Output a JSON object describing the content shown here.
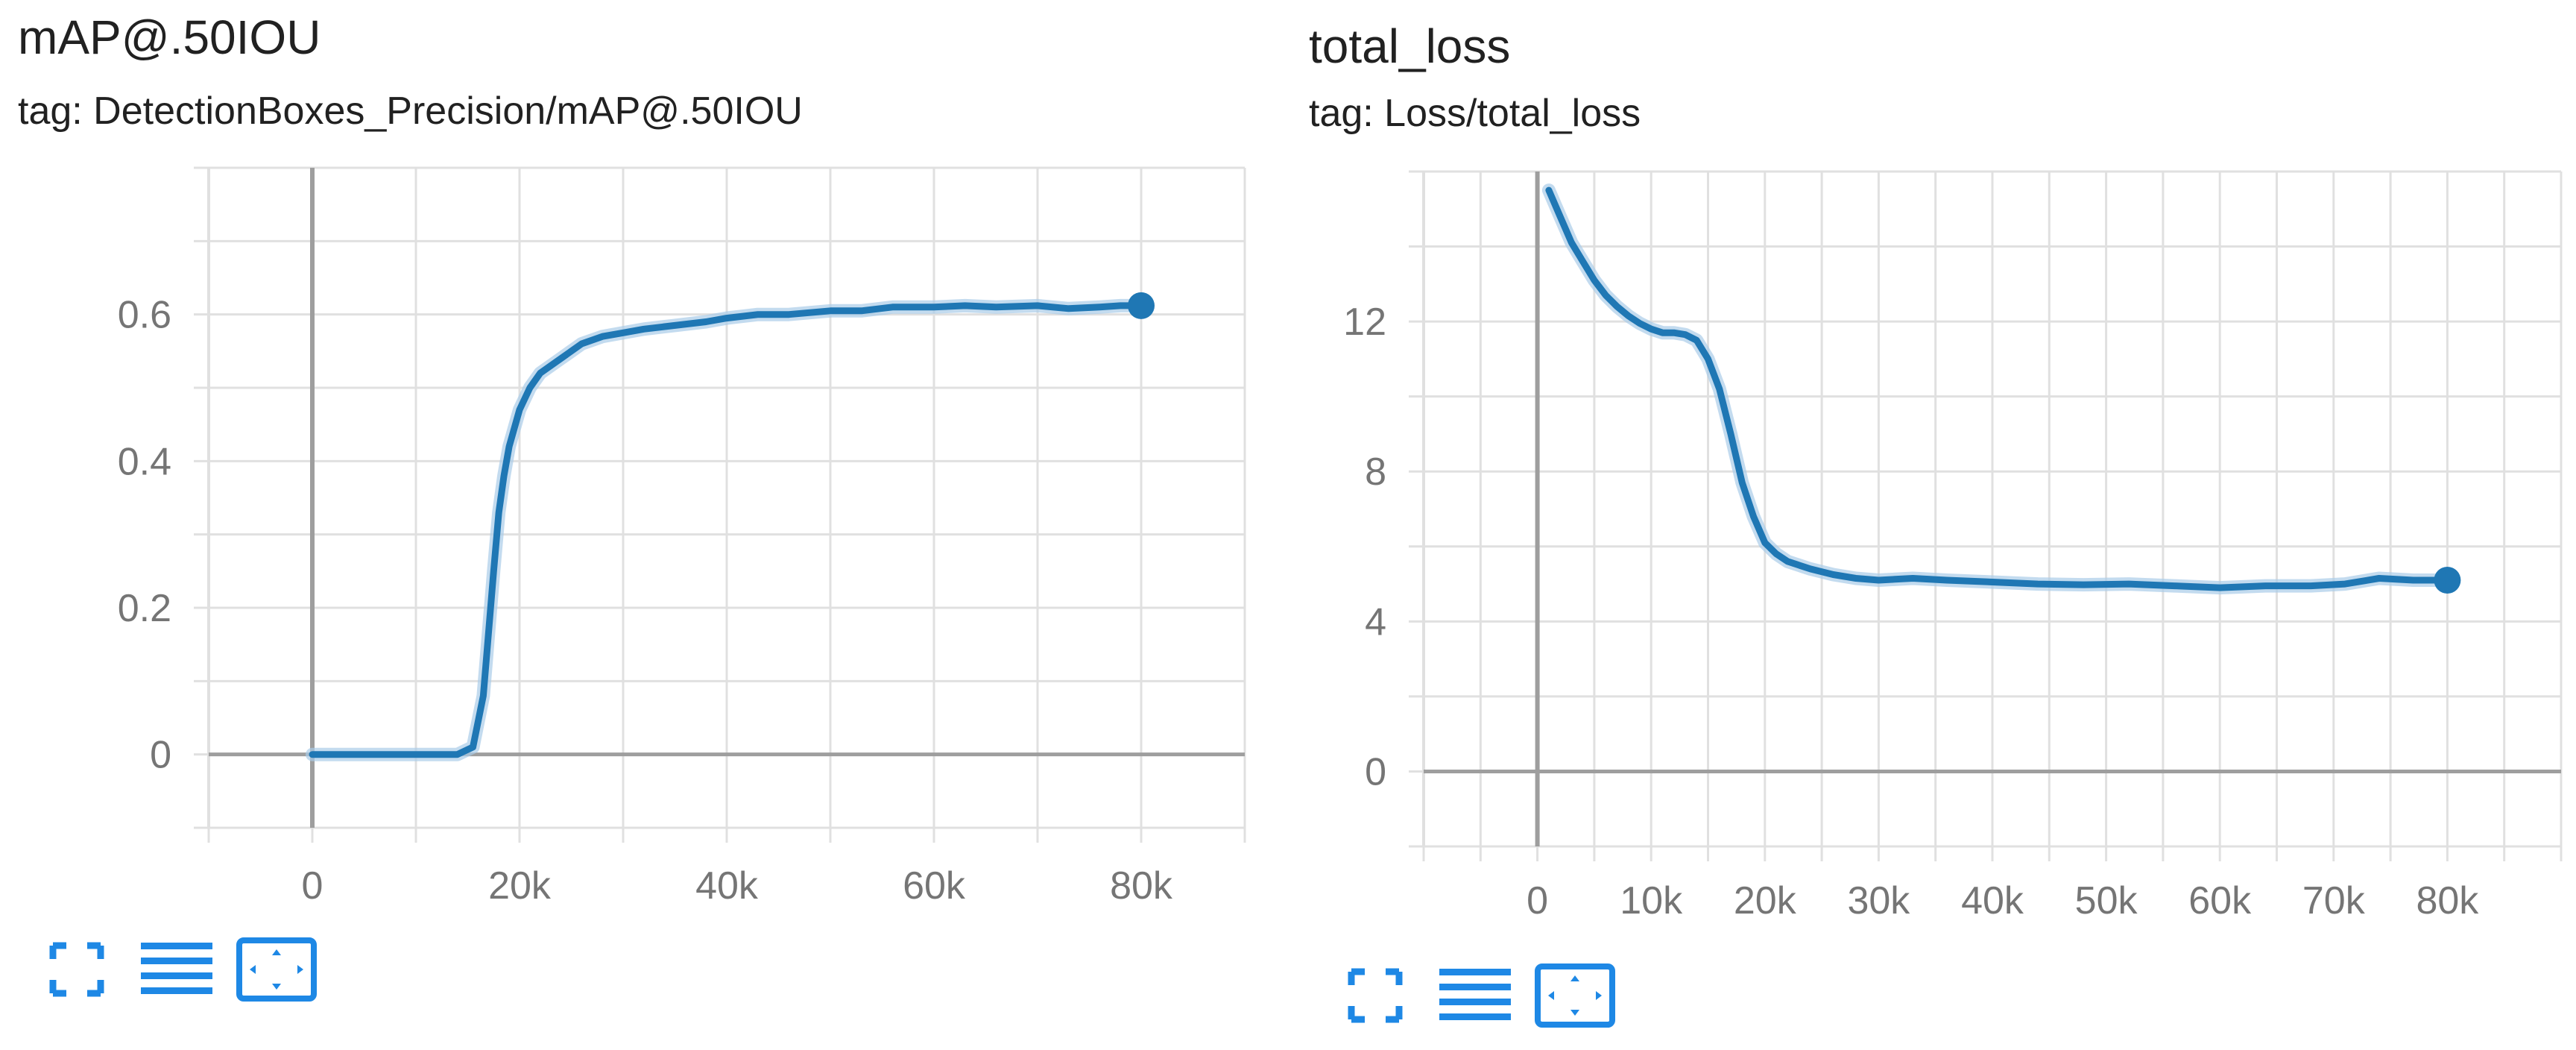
{
  "charts": [
    {
      "title": "mAP@.50IOU",
      "tag": "tag: DetectionBoxes_Precision/mAP@.50IOU"
    },
    {
      "title": "total_loss",
      "tag": "tag: Loss/total_loss"
    }
  ],
  "toolbar_icons": [
    "expand-fullscreen-icon",
    "toggle-log-scale-icon",
    "fit-domain-icon"
  ],
  "colors": {
    "line": "#1f77b4",
    "line_raw": "#a9cce8",
    "grid": "#e0e0e0",
    "axis": "#9e9e9e",
    "icon": "#1e88e5"
  },
  "chart_data": [
    {
      "type": "line",
      "title": "mAP@.50IOU",
      "subtitle": "tag: DetectionBoxes_Precision/mAP@.50IOU",
      "xlabel": "",
      "ylabel": "",
      "xlim": [
        -10000,
        90000
      ],
      "ylim": [
        -0.1,
        0.8
      ],
      "xticks": [
        0,
        20000,
        40000,
        60000,
        80000
      ],
      "xtick_labels": [
        "0",
        "20k",
        "40k",
        "60k",
        "80k"
      ],
      "yticks": [
        0,
        0.2,
        0.4,
        0.6
      ],
      "ytick_labels": [
        "0",
        "0.2",
        "0.4",
        "0.6"
      ],
      "grid": true,
      "series": [
        {
          "x": [
            0,
            5000,
            10000,
            14000,
            15500,
            16500,
            17500,
            18000,
            18500,
            19000,
            20000,
            21000,
            22000,
            24000,
            26000,
            28000,
            30000,
            32000,
            35000,
            38000,
            40000,
            43000,
            46000,
            50000,
            53000,
            56000,
            60000,
            63000,
            66000,
            70000,
            73000,
            76000,
            78000,
            80000
          ],
          "y": [
            0,
            0,
            0,
            0,
            0.01,
            0.08,
            0.25,
            0.33,
            0.38,
            0.42,
            0.47,
            0.5,
            0.52,
            0.54,
            0.56,
            0.57,
            0.575,
            0.58,
            0.585,
            0.59,
            0.595,
            0.6,
            0.6,
            0.605,
            0.605,
            0.61,
            0.61,
            0.612,
            0.61,
            0.612,
            0.608,
            0.61,
            0.612,
            0.612
          ]
        }
      ]
    },
    {
      "type": "line",
      "title": "total_loss",
      "subtitle": "tag: Loss/total_loss",
      "xlabel": "",
      "ylabel": "",
      "xlim": [
        -10000,
        90000
      ],
      "ylim": [
        -2,
        16
      ],
      "xticks": [
        0,
        10000,
        20000,
        30000,
        40000,
        50000,
        60000,
        70000,
        80000
      ],
      "xtick_labels": [
        "0",
        "10k",
        "20k",
        "30k",
        "40k",
        "50k",
        "60k",
        "70k",
        "80k"
      ],
      "yticks": [
        0,
        4,
        8,
        12
      ],
      "ytick_labels": [
        "0",
        "4",
        "8",
        "12"
      ],
      "grid": true,
      "series": [
        {
          "x": [
            1000,
            2000,
            3000,
            4000,
            5000,
            6000,
            7000,
            8000,
            9000,
            10000,
            11000,
            12000,
            13000,
            14000,
            15000,
            16000,
            17000,
            18000,
            19000,
            20000,
            21000,
            22000,
            24000,
            26000,
            28000,
            30000,
            33000,
            36000,
            40000,
            44000,
            48000,
            52000,
            56000,
            60000,
            64000,
            68000,
            71000,
            74000,
            77000,
            80000
          ],
          "y": [
            15.5,
            14.8,
            14.1,
            13.6,
            13.1,
            12.7,
            12.4,
            12.15,
            11.95,
            11.8,
            11.7,
            11.7,
            11.65,
            11.5,
            11.0,
            10.2,
            9.0,
            7.7,
            6.8,
            6.1,
            5.8,
            5.6,
            5.4,
            5.25,
            5.15,
            5.1,
            5.15,
            5.1,
            5.05,
            5.0,
            4.98,
            5.0,
            4.95,
            4.9,
            4.95,
            4.95,
            5.0,
            5.15,
            5.1,
            5.1
          ]
        }
      ]
    }
  ]
}
